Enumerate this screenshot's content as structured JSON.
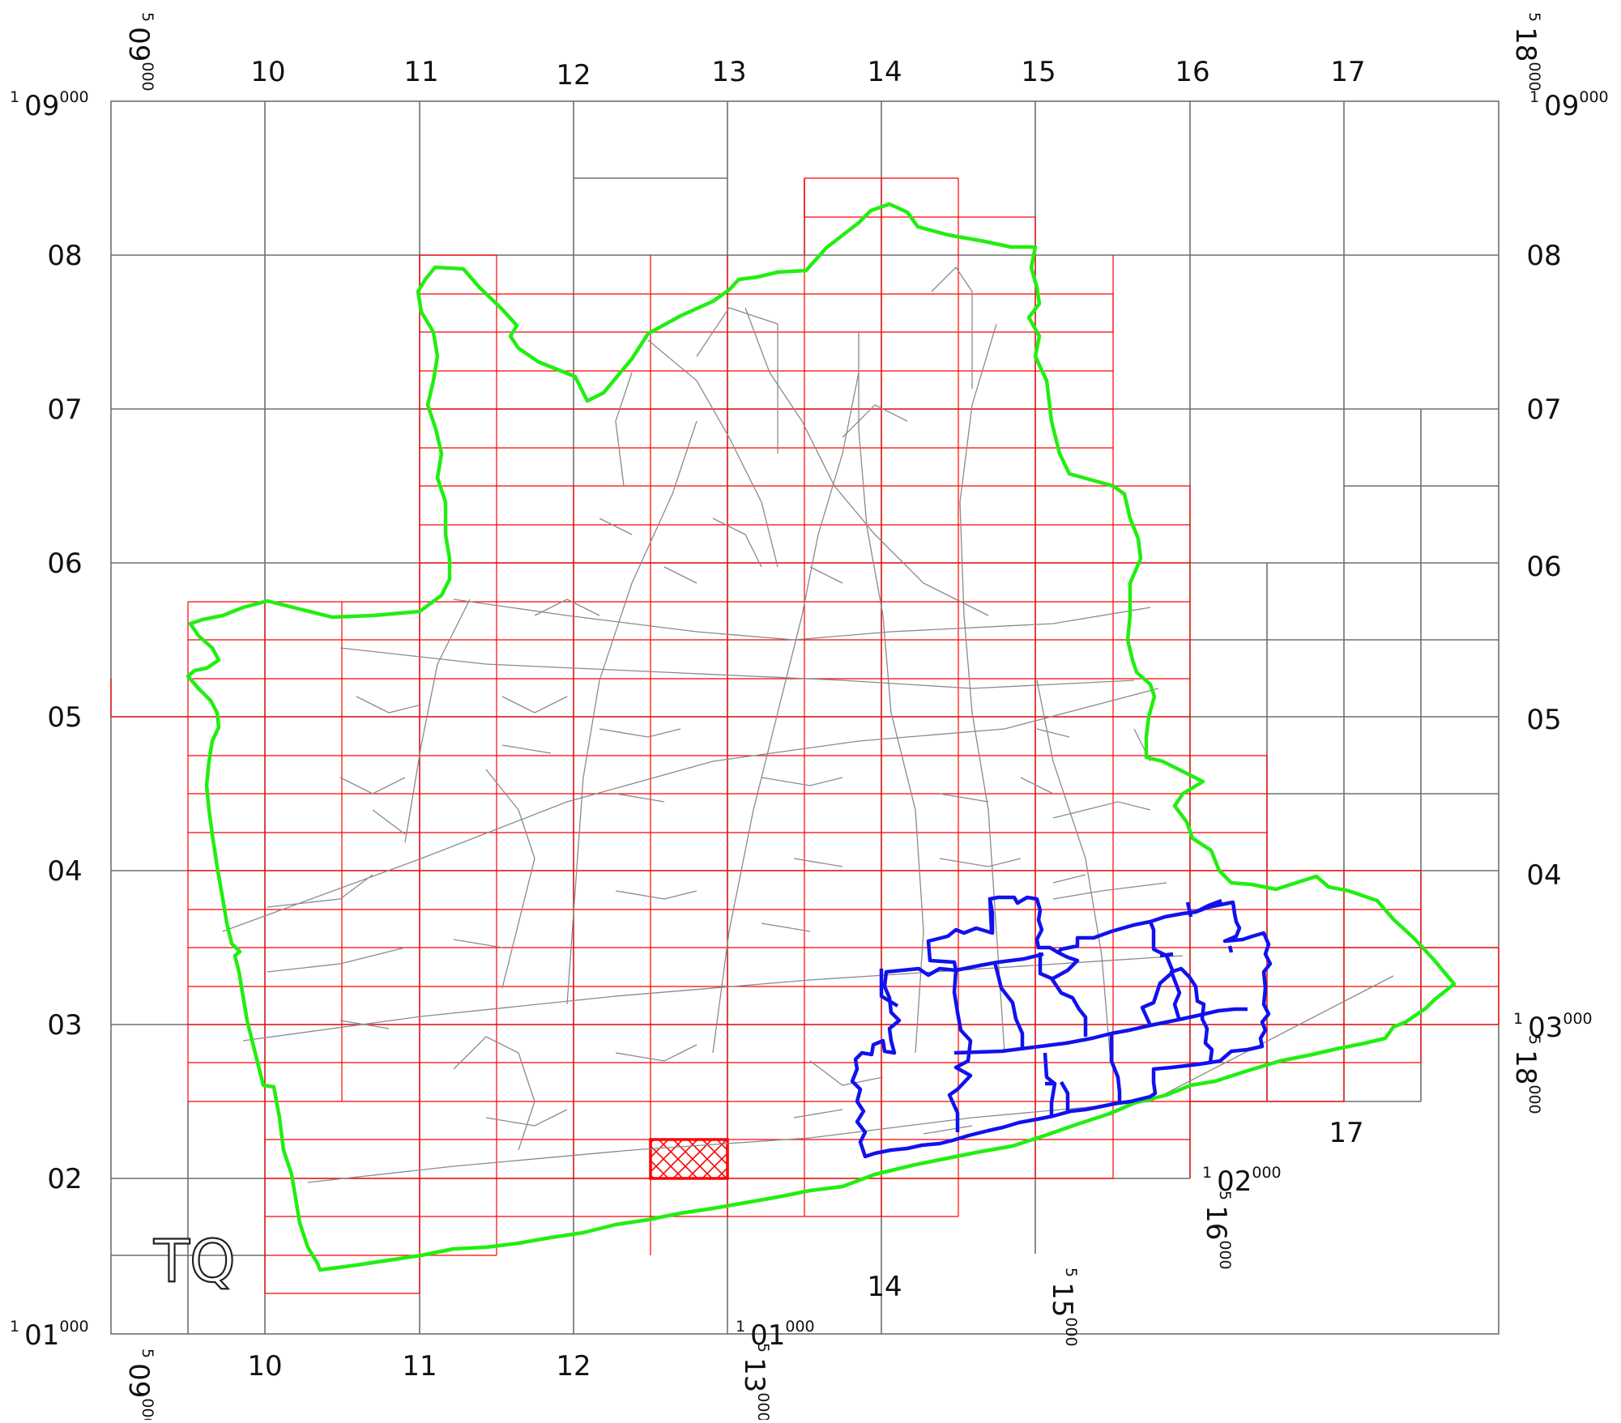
{
  "map": {
    "square_id": "TQ",
    "top_col_labels": [
      "10",
      "11",
      "12",
      "13",
      "14",
      "15",
      "16",
      "17"
    ],
    "bottom_col_labels": [
      "10",
      "11",
      "12"
    ],
    "bottom_inner_labels": [
      "14",
      "17"
    ],
    "row_labels_left": [
      "08",
      "07",
      "06",
      "05",
      "04",
      "03",
      "02"
    ],
    "row_labels_right": [
      "08",
      "07",
      "06",
      "05",
      "04"
    ],
    "corner_labels": {
      "top_left_easting": {
        "sup": "5",
        "main": "09",
        "small": "000"
      },
      "top_right_easting": {
        "sup": "5",
        "main": "18",
        "small": "000"
      },
      "top_left_northing": {
        "sup": "1",
        "main": "09",
        "small": "000"
      },
      "top_right_northing": {
        "sup": "1",
        "main": "09",
        "small": "000"
      },
      "bottom_left_northing": {
        "sup": "1",
        "main": "01",
        "small": "000"
      },
      "bottom_left_easting": {
        "sup": "5",
        "main": "09",
        "small": "000"
      },
      "e13": {
        "sup": "5",
        "main": "13",
        "small": "000"
      },
      "n01_mid": {
        "sup": "1",
        "main": "01",
        "small": "000"
      },
      "e15": {
        "sup": "5",
        "main": "15",
        "small": "000"
      },
      "e16": {
        "sup": "5",
        "main": "16",
        "small": "000"
      },
      "n02_right": {
        "sup": "1",
        "main": "02",
        "small": "000"
      },
      "n03_right": {
        "sup": "1",
        "main": "03",
        "small": "000"
      },
      "e18_right": {
        "sup": "5",
        "main": "18",
        "small": "000"
      }
    },
    "colors": {
      "boundary": "#22ee11",
      "zones": "#1111ee",
      "sheet_grid": "#ff0000",
      "km_grid": "#6f6f6f",
      "roads": "#8a8a8a"
    }
  }
}
